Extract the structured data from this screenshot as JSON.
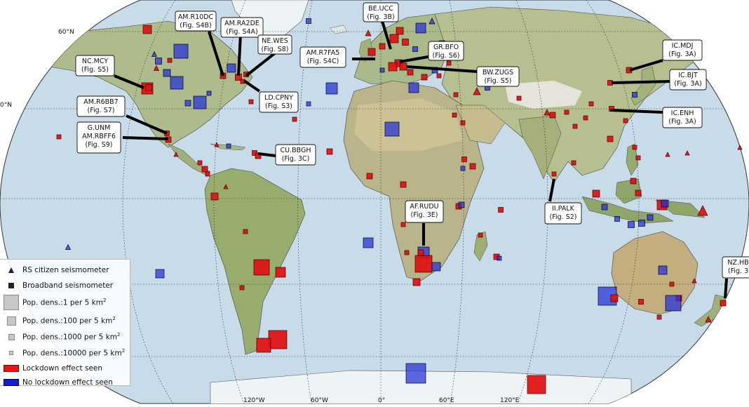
{
  "axes": {
    "lat_labels": [
      "60°N",
      "0°N"
    ],
    "lon_labels": [
      "120°W",
      "60°W",
      "0°",
      "60°E",
      "120°E"
    ]
  },
  "colors": {
    "lockdown": "#e01010",
    "no_lockdown": "#2230d8",
    "ocean": "#c8dcea",
    "land": "#a9b98a"
  },
  "legend": {
    "citizen": "RS citizen seismometer",
    "broadband": "Broadband seismometer",
    "pop1_prefix": "Pop. dens.:1 per 5 km",
    "pop100_prefix": "Pop. dens.:100 per 5 km",
    "pop1000_prefix": "Pop. dens.:1000 per 5 km",
    "pop10000_prefix": "Pop. dens.:10000 per 5 km",
    "sup": "2",
    "red": "Lockdown effect seen",
    "blue": "No lockdown effect seen"
  },
  "labels": [
    {
      "id": "am-r10dc",
      "line1": "AM.R10DC",
      "line2": "(Fig. S4B)"
    },
    {
      "id": "am-ra2de",
      "line1": "AM.RA2DE",
      "line2": "(Fig. S4A)"
    },
    {
      "id": "ne-wes",
      "line1": "NE.WES",
      "line2": "(Fig. S8)"
    },
    {
      "id": "be-ucc",
      "line1": "BE.UCC",
      "line2": "(Fig. 3B)"
    },
    {
      "id": "gr-bfo",
      "line1": "GR.BFO",
      "line2": "(Fig. S6)"
    },
    {
      "id": "am-r7fa5",
      "line1": "AM.R7FA5",
      "line2": "(Fig. S4C)"
    },
    {
      "id": "bw-zugs",
      "line1": "BW.ZUGS",
      "line2": "(Fig. S5)"
    },
    {
      "id": "nc-mcy",
      "line1": "NC.MCY",
      "line2": "(Fig. S5)"
    },
    {
      "id": "ld-cpny",
      "line1": "LD.CPNY",
      "line2": "(Fig. S3)"
    },
    {
      "id": "am-r6bb7",
      "line1": "AM.R6BB7",
      "line2": "(Fig. S7)"
    },
    {
      "id": "g-unm",
      "line1": "G.UNM",
      "line2": "AM.RBFF6",
      "line3": "(Fig. S9)"
    },
    {
      "id": "cu-bbgh",
      "line1": "CU.BBGH",
      "line2": "(Fig. 3C)"
    },
    {
      "id": "ic-mdj",
      "line1": "IC.MDJ",
      "line2": "(Fig. 3A)"
    },
    {
      "id": "ic-bjt",
      "line1": "IC.BJT",
      "line2": "(Fig. 3A)"
    },
    {
      "id": "ic-enh",
      "line1": "IC.ENH",
      "line2": "(Fig. 3A)"
    },
    {
      "id": "af-rudu",
      "line1": "AF.RUDU",
      "line2": "(Fig. 3E)"
    },
    {
      "id": "ii-palk",
      "line1": "II.PALK",
      "line2": "(Fig. S2)"
    },
    {
      "id": "nz-hb",
      "line1": "NZ.HB",
      "line2": "(Fig. 3"
    }
  ]
}
